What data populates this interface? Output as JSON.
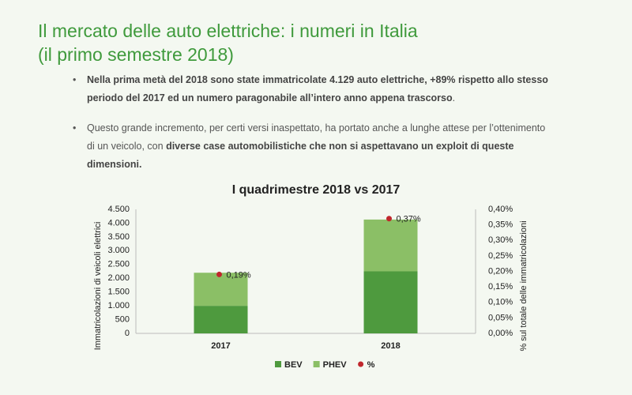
{
  "header": {
    "title_main": "Il mercato delle auto elettriche:",
    "title_rest": "i numeri in Italia",
    "subtitle": "(il primo semestre 2018)"
  },
  "bullets": [
    [
      {
        "text": "Nella prima metà del 2018 sono state immatricolate 4.129 auto elettriche, +89% rispetto allo stesso periodo del 2017 ed un numero paragonabile all’intero anno appena trascorso",
        "bold": true
      },
      {
        "text": ".",
        "bold": false
      }
    ],
    [
      {
        "text": "Questo grande incremento, per certi versi inaspettato, ha portato anche a lunghe attese per l’ottenimento di un veicolo, con ",
        "bold": false
      },
      {
        "text": "diverse case automobilistiche che non si aspettavano un exploit di queste dimensioni.",
        "bold": true
      }
    ]
  ],
  "chart_data": {
    "type": "bar",
    "title": "I quadrimestre 2018 vs 2017",
    "y_label": "Immatricolazioni  di veicoli elettrici",
    "y2_label": "% sul totale delle immatricolazioni",
    "categories": [
      "2017",
      "2018"
    ],
    "series": [
      {
        "name": "BEV",
        "color": "#4e9a3e",
        "values": [
          1000,
          2250
        ]
      },
      {
        "name": "PHEV",
        "color": "#8bbf66",
        "values": [
          1200,
          1880
        ]
      },
      {
        "name": "%",
        "color": "#c0272d",
        "type": "scatter",
        "axis": "y2",
        "values": [
          0.19,
          0.37
        ],
        "value_labels": [
          "0,19%",
          "0,37%"
        ]
      }
    ],
    "ylim": [
      0,
      4500
    ],
    "yticks": [
      0,
      500,
      {
        "value": 1000,
        "label": "1.000"
      },
      {
        "value": 1500,
        "label": "1.500"
      },
      {
        "value": 2000,
        "label": "2.000"
      },
      {
        "value": 2500,
        "label": "2.500"
      },
      {
        "value": 3000,
        "label": "3.000"
      },
      {
        "value": 3500,
        "label": "3.500"
      },
      {
        "value": 4000,
        "label": "4.000"
      },
      {
        "value": 4500,
        "label": "4.500"
      }
    ],
    "y2lim": [
      0,
      0.4
    ],
    "y2ticks": [
      {
        "value": 0,
        "label": "0,00%"
      },
      {
        "value": 0.05,
        "label": "0,05%"
      },
      {
        "value": 0.1,
        "label": "0,10%"
      },
      {
        "value": 0.15,
        "label": "0,15%"
      },
      {
        "value": 0.2,
        "label": "0,20%"
      },
      {
        "value": 0.25,
        "label": "0,25%"
      },
      {
        "value": 0.3,
        "label": "0,30%"
      },
      {
        "value": 0.35,
        "label": "0,35%"
      },
      {
        "value": 0.4,
        "label": "0,40%"
      }
    ],
    "grid": false
  }
}
